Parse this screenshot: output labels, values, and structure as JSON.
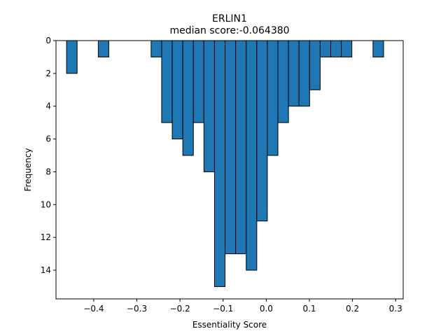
{
  "chart_data": {
    "type": "bar",
    "title": "ERLIN1",
    "subtitle": "median score:-0.064380",
    "xlabel": "Essentiality Score",
    "ylabel": "Frequency",
    "y_inverted": true,
    "xlim": [
      -0.4875,
      0.3175
    ],
    "ylim": [
      0,
      15.75
    ],
    "bin_width": 0.0245,
    "xticks": [
      -0.4,
      -0.3,
      -0.2,
      -0.1,
      0.0,
      0.1,
      0.2,
      0.3
    ],
    "xtick_labels": [
      "−0.4",
      "−0.3",
      "−0.2",
      "−0.1",
      "0.0",
      "0.1",
      "0.2",
      "0.3"
    ],
    "yticks": [
      0,
      2,
      4,
      6,
      8,
      10,
      12,
      14
    ],
    "ytick_labels": [
      "0",
      "2",
      "4",
      "6",
      "8",
      "10",
      "12",
      "14"
    ],
    "bins": [
      {
        "x": -0.463,
        "count": 2
      },
      {
        "x": -0.3895,
        "count": 1
      },
      {
        "x": -0.267,
        "count": 1
      },
      {
        "x": -0.2425,
        "count": 5
      },
      {
        "x": -0.218,
        "count": 6
      },
      {
        "x": -0.1935,
        "count": 7
      },
      {
        "x": -0.169,
        "count": 5
      },
      {
        "x": -0.1445,
        "count": 8
      },
      {
        "x": -0.12,
        "count": 15
      },
      {
        "x": -0.0955,
        "count": 13
      },
      {
        "x": -0.071,
        "count": 13
      },
      {
        "x": -0.0465,
        "count": 14
      },
      {
        "x": -0.022,
        "count": 11
      },
      {
        "x": 0.0025,
        "count": 7
      },
      {
        "x": 0.027,
        "count": 5
      },
      {
        "x": 0.0515,
        "count": 4
      },
      {
        "x": 0.076,
        "count": 4
      },
      {
        "x": 0.1005,
        "count": 3
      },
      {
        "x": 0.125,
        "count": 1
      },
      {
        "x": 0.1495,
        "count": 1
      },
      {
        "x": 0.174,
        "count": 1
      },
      {
        "x": 0.2475,
        "count": 1
      }
    ],
    "bar_color": "#1f77b4",
    "edge_color": "#000000",
    "grid": false,
    "legend": "none"
  }
}
